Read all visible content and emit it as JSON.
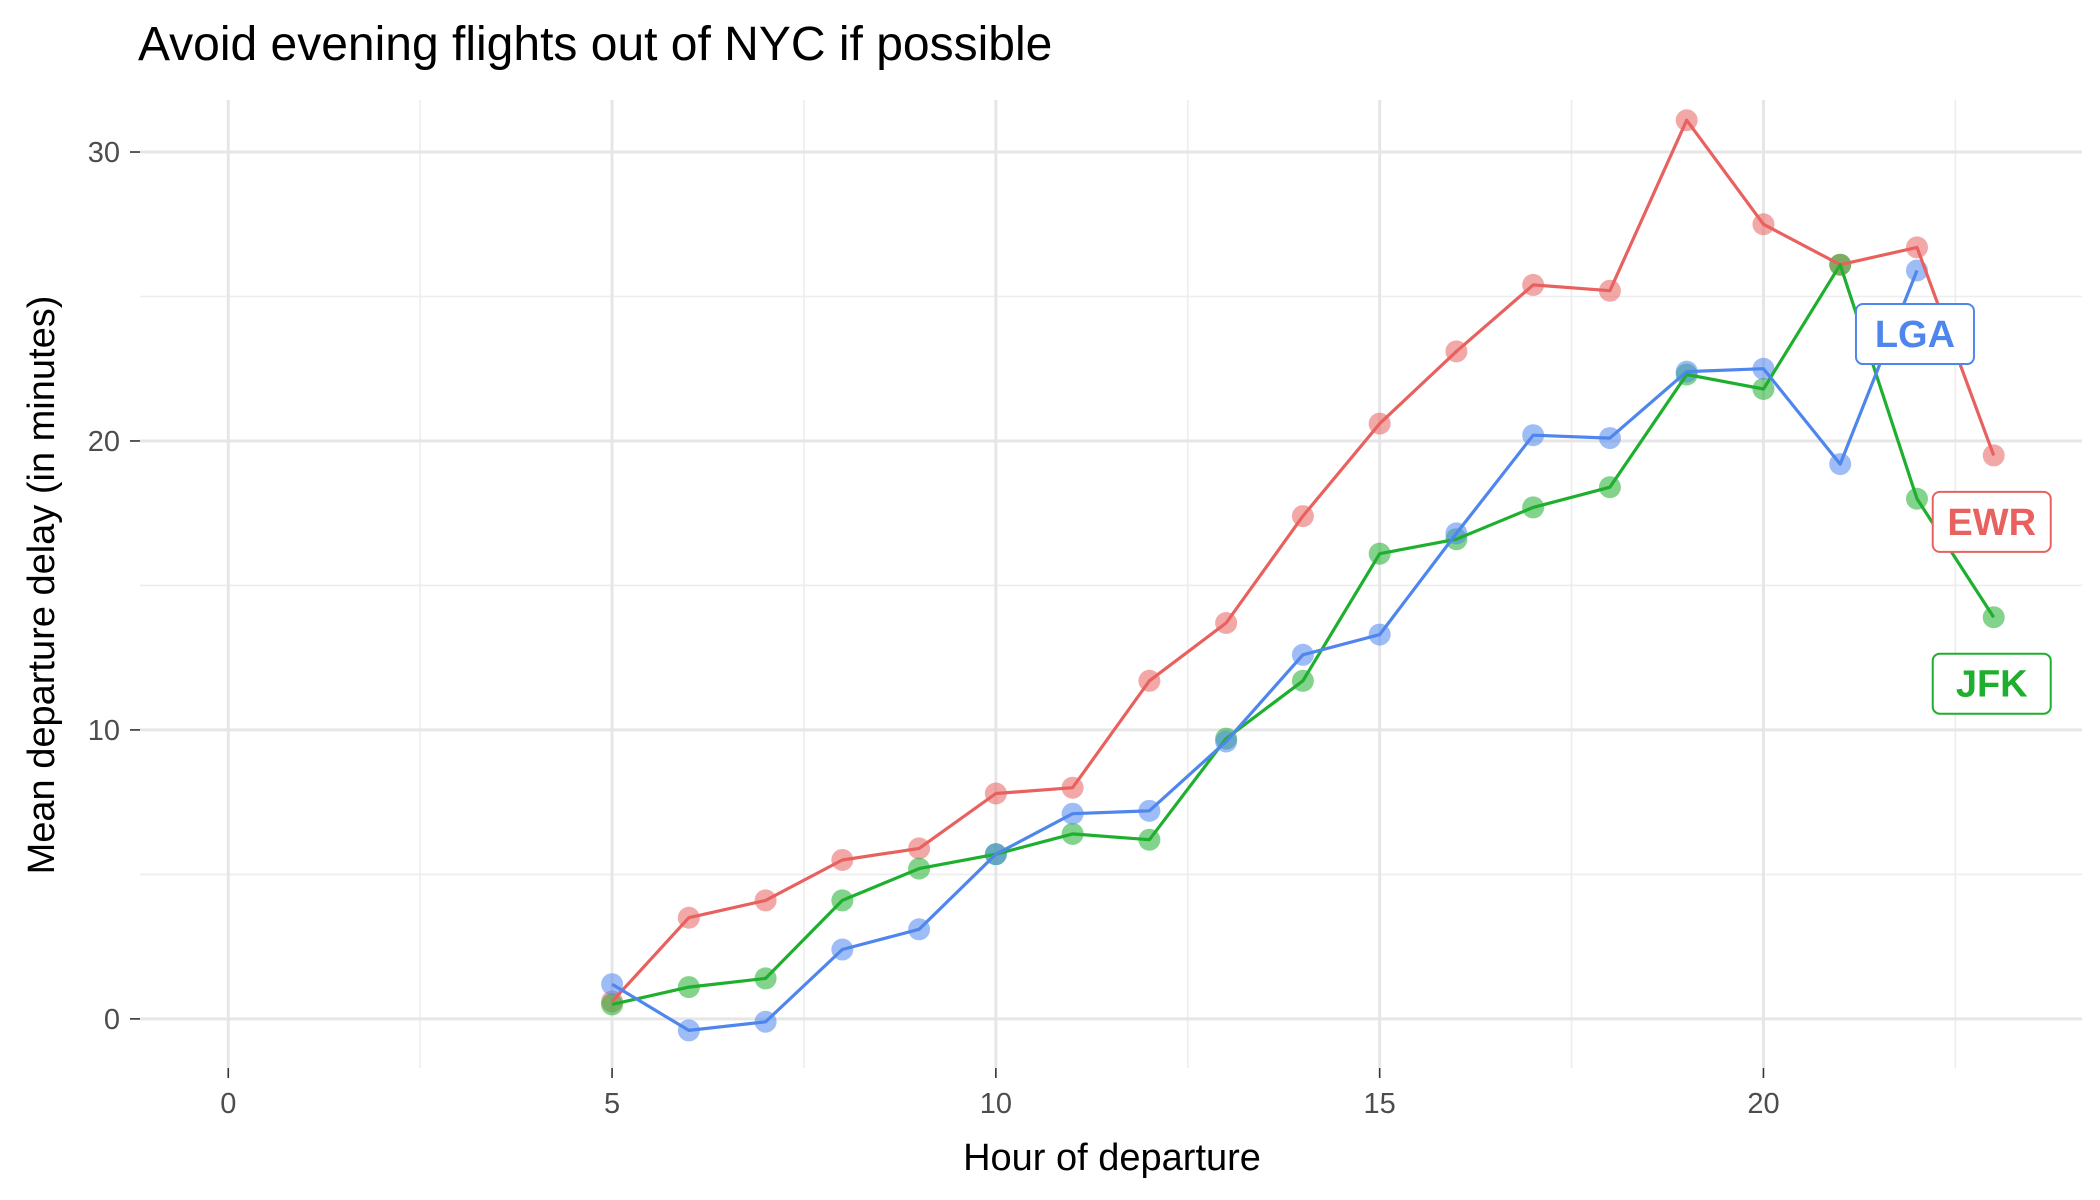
{
  "chart_data": {
    "type": "line",
    "title": "Avoid evening flights out of NYC if possible",
    "xlabel": "Hour of departure",
    "ylabel": "Mean departure delay (in minutes)",
    "xlim": [
      0,
      23
    ],
    "ylim": [
      -1.7,
      31.8
    ],
    "x_ticks": [
      0,
      5,
      10,
      15,
      20
    ],
    "y_ticks": [
      0,
      10,
      20,
      30
    ],
    "grid": true,
    "legend": "direct-labels",
    "series": [
      {
        "name": "EWR",
        "color": "#E8615F",
        "label_pos": [
          23,
          17.2
        ],
        "points": [
          [
            5,
            0.6
          ],
          [
            6,
            3.5
          ],
          [
            7,
            4.1
          ],
          [
            8,
            5.5
          ],
          [
            9,
            5.9
          ],
          [
            10,
            7.8
          ],
          [
            11,
            8.0
          ],
          [
            12,
            11.7
          ],
          [
            13,
            13.7
          ],
          [
            14,
            17.4
          ],
          [
            15,
            20.6
          ],
          [
            16,
            23.1
          ],
          [
            17,
            25.4
          ],
          [
            18,
            25.2
          ],
          [
            19,
            31.1
          ],
          [
            20,
            27.5
          ],
          [
            21,
            26.1
          ],
          [
            22,
            26.7
          ],
          [
            23,
            19.5
          ]
        ]
      },
      {
        "name": "JFK",
        "color": "#1EAF2E",
        "label_pos": [
          23,
          11.6
        ],
        "points": [
          [
            5,
            0.5
          ],
          [
            6,
            1.1
          ],
          [
            7,
            1.4
          ],
          [
            8,
            4.1
          ],
          [
            9,
            5.2
          ],
          [
            10,
            5.7
          ],
          [
            11,
            6.4
          ],
          [
            12,
            6.2
          ],
          [
            13,
            9.7
          ],
          [
            14,
            11.7
          ],
          [
            15,
            16.1
          ],
          [
            16,
            16.6
          ],
          [
            17,
            17.7
          ],
          [
            18,
            18.4
          ],
          [
            19,
            22.3
          ],
          [
            20,
            21.8
          ],
          [
            21,
            26.1
          ],
          [
            22,
            18.0
          ],
          [
            23,
            13.9
          ]
        ]
      },
      {
        "name": "LGA",
        "color": "#4F86EE",
        "label_pos": [
          22,
          23.7
        ],
        "points": [
          [
            5,
            1.2
          ],
          [
            6,
            -0.4
          ],
          [
            7,
            -0.1
          ],
          [
            8,
            2.4
          ],
          [
            9,
            3.1
          ],
          [
            10,
            5.7
          ],
          [
            11,
            7.1
          ],
          [
            12,
            7.2
          ],
          [
            13,
            9.6
          ],
          [
            14,
            12.6
          ],
          [
            15,
            13.3
          ],
          [
            16,
            16.8
          ],
          [
            17,
            20.2
          ],
          [
            18,
            20.1
          ],
          [
            19,
            22.4
          ],
          [
            20,
            22.5
          ],
          [
            21,
            19.2
          ],
          [
            22,
            25.9
          ]
        ]
      }
    ]
  }
}
